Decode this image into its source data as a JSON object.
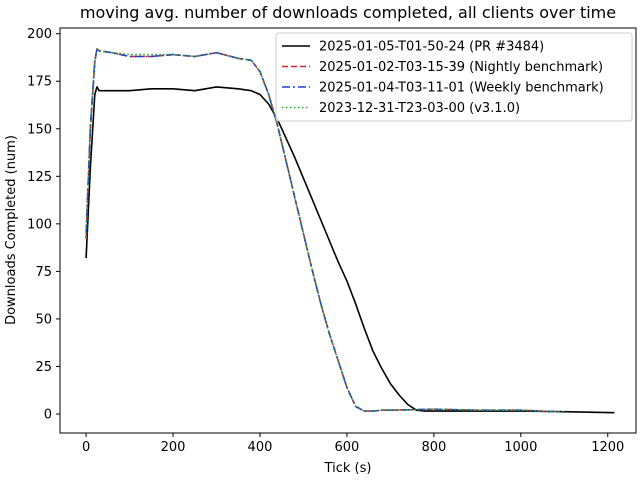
{
  "chart_data": {
    "type": "line",
    "title": "moving avg. number of downloads completed, all clients over time",
    "xlabel": "Tick (s)",
    "ylabel": "Downloads Completed (num)",
    "xlim": [
      -60,
      1265
    ],
    "ylim": [
      -10,
      203
    ],
    "xticks": [
      0,
      200,
      400,
      600,
      800,
      1000,
      1200
    ],
    "yticks": [
      0,
      25,
      50,
      75,
      100,
      125,
      150,
      175,
      200
    ],
    "grid": false,
    "legend_position": "top-right",
    "series": [
      {
        "name": "2025-01-05-T01-50-24 (PR #3484)",
        "color": "#000000",
        "style": "solid",
        "x": [
          0,
          10,
          20,
          25,
          30,
          60,
          100,
          150,
          200,
          250,
          300,
          350,
          380,
          400,
          420,
          440,
          460,
          480,
          500,
          520,
          540,
          560,
          580,
          600,
          620,
          640,
          660,
          680,
          700,
          720,
          740,
          760,
          780,
          800,
          900,
          1000,
          1100,
          1215
        ],
        "y": [
          82,
          130,
          168,
          172,
          170,
          170,
          170,
          171,
          171,
          170,
          172,
          171,
          170,
          168,
          163,
          155,
          145,
          135,
          124,
          113,
          102,
          91,
          80,
          70,
          58,
          45,
          33,
          24,
          16,
          10,
          5,
          2,
          1.5,
          1.5,
          1.5,
          1.5,
          1.2,
          0.7
        ]
      },
      {
        "name": "2025-01-02-T03-15-39 (Nightly benchmark)",
        "color": "#d62728",
        "style": "dashed",
        "x": [
          0,
          10,
          20,
          25,
          30,
          60,
          100,
          150,
          200,
          250,
          300,
          350,
          380,
          400,
          420,
          440,
          460,
          480,
          500,
          520,
          540,
          560,
          580,
          600,
          620,
          640,
          660,
          680,
          700,
          800,
          900,
          1000,
          1100
        ],
        "y": [
          92,
          150,
          185,
          192,
          191,
          190,
          188,
          188,
          189,
          188,
          190,
          187,
          186,
          180,
          168,
          152,
          133,
          114,
          95,
          76,
          58,
          42,
          28,
          14,
          4,
          1.5,
          1.5,
          2,
          2,
          2.5,
          2,
          2,
          1
        ]
      },
      {
        "name": "2025-01-04-T03-11-01 (Weekly benchmark)",
        "color": "#1f3fd6",
        "style": "dashdot",
        "x": [
          0,
          10,
          20,
          25,
          30,
          60,
          100,
          150,
          200,
          250,
          300,
          350,
          380,
          400,
          420,
          440,
          460,
          480,
          500,
          520,
          540,
          560,
          580,
          600,
          620,
          640,
          660,
          680,
          700,
          800,
          900,
          1000,
          1100
        ],
        "y": [
          95,
          152,
          186,
          192,
          191,
          190,
          188,
          188,
          189,
          188,
          190,
          187,
          186,
          180,
          168,
          152,
          133,
          114,
          95,
          76,
          58,
          42,
          28,
          14,
          4,
          1.5,
          1.5,
          2,
          2,
          2.5,
          2,
          2,
          1
        ]
      },
      {
        "name": "2023-12-31-T23-03-00 (v3.1.0)",
        "color": "#2ca02c",
        "style": "dotted",
        "x": [
          0,
          10,
          20,
          25,
          30,
          60,
          100,
          150,
          200,
          250,
          300,
          350,
          380,
          400,
          420,
          440,
          460,
          480,
          500,
          520,
          540,
          560,
          580,
          600,
          620,
          640,
          660,
          680,
          700,
          800,
          900,
          1000,
          1100
        ],
        "y": [
          93,
          151,
          185,
          192,
          191,
          190,
          189,
          189,
          189,
          188,
          190,
          187,
          186,
          180,
          168,
          152,
          133,
          114,
          95,
          76,
          58,
          42,
          28,
          14,
          4,
          1.5,
          1.5,
          2,
          2,
          2.5,
          2,
          2,
          1
        ]
      }
    ]
  }
}
